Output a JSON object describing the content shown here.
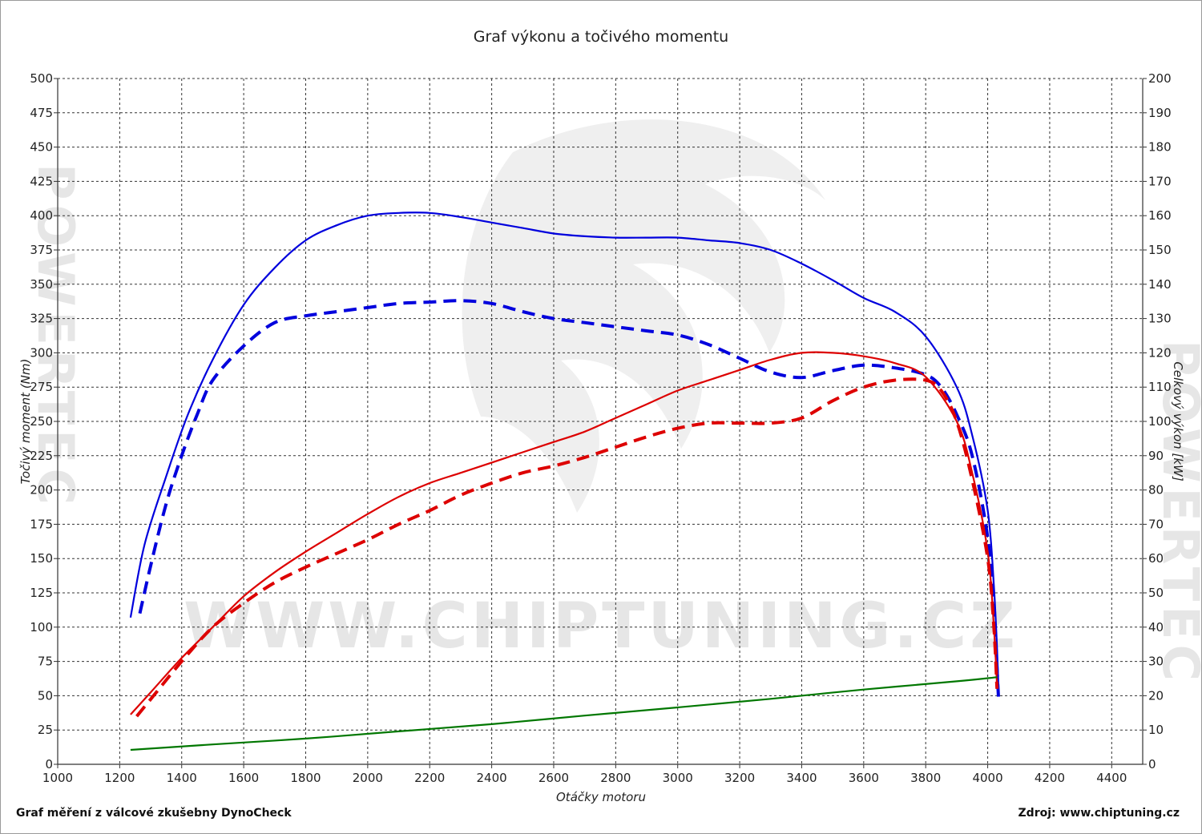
{
  "chart_data": {
    "type": "line",
    "title": "Graf výkonu a točivého momentu",
    "xlabel": "Otáčky motoru",
    "ylabel_left": "Točivý moment (Nm)",
    "ylabel_right": "Celkový výkon [kW]",
    "xlim": [
      1000,
      4500
    ],
    "ylim_left": [
      0,
      500
    ],
    "ylim_right": [
      0,
      200
    ],
    "x_ticks": [
      "1000",
      "1200",
      "1400",
      "1600",
      "1800",
      "2000",
      "2200",
      "2400",
      "2600",
      "2800",
      "3000",
      "3200",
      "3400",
      "3600",
      "3800",
      "4000",
      "4200",
      "4400"
    ],
    "y_left_ticks": [
      "0",
      "25",
      "50",
      "75",
      "100",
      "125",
      "150",
      "175",
      "200",
      "225",
      "250",
      "275",
      "300",
      "325",
      "350",
      "375",
      "400",
      "425",
      "450",
      "475",
      "500"
    ],
    "y_right_ticks": [
      "0",
      "10",
      "20",
      "30",
      "40",
      "50",
      "60",
      "70",
      "80",
      "90",
      "100",
      "110",
      "120",
      "130",
      "140",
      "150",
      "160",
      "170",
      "180",
      "190",
      "200"
    ],
    "grid": true,
    "series": [
      {
        "axis": "left",
        "style": "solid",
        "color": "#0000dd",
        "points": [
          [
            1235,
            107
          ],
          [
            1280,
            160
          ],
          [
            1350,
            210
          ],
          [
            1420,
            255
          ],
          [
            1500,
            295
          ],
          [
            1600,
            335
          ],
          [
            1700,
            362
          ],
          [
            1800,
            382
          ],
          [
            1900,
            393
          ],
          [
            2000,
            400
          ],
          [
            2100,
            402
          ],
          [
            2200,
            402
          ],
          [
            2300,
            399
          ],
          [
            2400,
            395
          ],
          [
            2500,
            391
          ],
          [
            2600,
            387
          ],
          [
            2700,
            385
          ],
          [
            2800,
            384
          ],
          [
            2900,
            384
          ],
          [
            3000,
            384
          ],
          [
            3100,
            382
          ],
          [
            3200,
            380
          ],
          [
            3300,
            375
          ],
          [
            3400,
            365
          ],
          [
            3500,
            353
          ],
          [
            3600,
            340
          ],
          [
            3700,
            330
          ],
          [
            3800,
            312
          ],
          [
            3900,
            275
          ],
          [
            3950,
            240
          ],
          [
            4000,
            185
          ],
          [
            4020,
            130
          ],
          [
            4030,
            85
          ],
          [
            4035,
            55
          ]
        ]
      },
      {
        "axis": "left",
        "style": "dashed",
        "color": "#0000dd",
        "points": [
          [
            1265,
            110
          ],
          [
            1300,
            145
          ],
          [
            1350,
            190
          ],
          [
            1400,
            225
          ],
          [
            1450,
            255
          ],
          [
            1500,
            280
          ],
          [
            1600,
            305
          ],
          [
            1700,
            322
          ],
          [
            1800,
            327
          ],
          [
            1900,
            330
          ],
          [
            2000,
            333
          ],
          [
            2100,
            336
          ],
          [
            2200,
            337
          ],
          [
            2300,
            338
          ],
          [
            2400,
            336
          ],
          [
            2500,
            330
          ],
          [
            2600,
            325
          ],
          [
            2700,
            322
          ],
          [
            2800,
            319
          ],
          [
            2900,
            316
          ],
          [
            3000,
            313
          ],
          [
            3100,
            306
          ],
          [
            3200,
            296
          ],
          [
            3300,
            286
          ],
          [
            3400,
            282
          ],
          [
            3500,
            287
          ],
          [
            3600,
            291
          ],
          [
            3700,
            289
          ],
          [
            3800,
            284
          ],
          [
            3850,
            275
          ],
          [
            3900,
            255
          ],
          [
            3950,
            225
          ],
          [
            4000,
            165
          ],
          [
            4020,
            110
          ],
          [
            4035,
            48
          ]
        ]
      },
      {
        "axis": "right",
        "style": "solid",
        "color": "#dd0000",
        "points": [
          [
            1235,
            14.5
          ],
          [
            1300,
            21
          ],
          [
            1400,
            31
          ],
          [
            1500,
            40
          ],
          [
            1600,
            49
          ],
          [
            1700,
            56
          ],
          [
            1800,
            62
          ],
          [
            1900,
            67.5
          ],
          [
            2000,
            73
          ],
          [
            2100,
            78
          ],
          [
            2200,
            82
          ],
          [
            2300,
            85
          ],
          [
            2400,
            88
          ],
          [
            2500,
            91
          ],
          [
            2600,
            94
          ],
          [
            2700,
            97
          ],
          [
            2800,
            101
          ],
          [
            2900,
            105
          ],
          [
            3000,
            109
          ],
          [
            3100,
            112
          ],
          [
            3200,
            115
          ],
          [
            3300,
            118
          ],
          [
            3400,
            120
          ],
          [
            3500,
            120
          ],
          [
            3600,
            119
          ],
          [
            3700,
            117
          ],
          [
            3800,
            113
          ],
          [
            3900,
            100
          ],
          [
            3950,
            85
          ],
          [
            4000,
            62
          ],
          [
            4020,
            40
          ],
          [
            4030,
            23
          ]
        ]
      },
      {
        "axis": "right",
        "style": "dashed",
        "color": "#dd0000",
        "points": [
          [
            1255,
            14
          ],
          [
            1300,
            19
          ],
          [
            1400,
            30
          ],
          [
            1500,
            40
          ],
          [
            1600,
            47
          ],
          [
            1700,
            53
          ],
          [
            1800,
            57.5
          ],
          [
            1900,
            61.5
          ],
          [
            2000,
            65.5
          ],
          [
            2100,
            70
          ],
          [
            2200,
            74
          ],
          [
            2300,
            78.5
          ],
          [
            2400,
            82
          ],
          [
            2500,
            85
          ],
          [
            2600,
            87
          ],
          [
            2700,
            89.5
          ],
          [
            2800,
            92.5
          ],
          [
            2900,
            95.5
          ],
          [
            3000,
            98
          ],
          [
            3100,
            99.5
          ],
          [
            3200,
            99.5
          ],
          [
            3300,
            99.5
          ],
          [
            3400,
            101
          ],
          [
            3500,
            106
          ],
          [
            3600,
            110
          ],
          [
            3700,
            112
          ],
          [
            3800,
            112
          ],
          [
            3850,
            109
          ],
          [
            3900,
            100
          ],
          [
            3950,
            83
          ],
          [
            4000,
            60
          ],
          [
            4020,
            40
          ],
          [
            4030,
            22
          ]
        ]
      },
      {
        "axis": "right",
        "style": "solid",
        "color": "#007700",
        "points": [
          [
            1235,
            4.2
          ],
          [
            1500,
            5.8
          ],
          [
            1800,
            7.5
          ],
          [
            2100,
            9.6
          ],
          [
            2400,
            11.7
          ],
          [
            2700,
            14.2
          ],
          [
            3000,
            16.6
          ],
          [
            3300,
            19.1
          ],
          [
            3600,
            21.8
          ],
          [
            3900,
            24.2
          ],
          [
            4030,
            25.4
          ]
        ]
      }
    ]
  },
  "watermark": {
    "center": "WWW.CHIPTUNING.CZ",
    "side": "POWERTEC"
  },
  "footer": {
    "left": "Graf měření z válcové zkušebny DynoCheck",
    "right": "Zdroj: www.chiptuning.cz"
  }
}
